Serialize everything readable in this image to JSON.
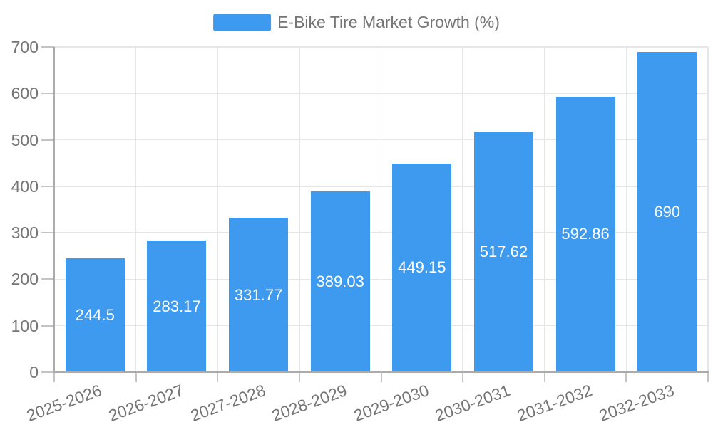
{
  "chart_data": {
    "type": "bar",
    "title": "E-Bike Tire Market Growth (%)",
    "categories": [
      "2025-2026",
      "2026-2027",
      "2027-2028",
      "2028-2029",
      "2029-2030",
      "2030-2031",
      "2031-2032",
      "2032-2033"
    ],
    "values": [
      244.5,
      283.17,
      331.77,
      389.03,
      449.15,
      517.62,
      592.86,
      690
    ],
    "value_labels": [
      "244.5",
      "283.17",
      "331.77",
      "389.03",
      "449.15",
      "517.62",
      "592.86",
      "690"
    ],
    "xlabel": "",
    "ylabel": "",
    "ylim": [
      0,
      700
    ],
    "y_ticks": [
      0,
      100,
      200,
      300,
      400,
      500,
      600,
      700
    ],
    "grid": true,
    "legend_position": "top-center",
    "value_labels_position": "inside-center",
    "x_label_rotation_deg": -20
  },
  "colors": {
    "bar": "#3D9AEE",
    "axis_text": "#757575",
    "legend_text": "#757575",
    "value_label_text": "#FFFFFF",
    "grid_line": "#E6E6E6",
    "axis_line": "#ABABAB",
    "tick": "#C4C4C4",
    "background": "#FFFFFF"
  }
}
